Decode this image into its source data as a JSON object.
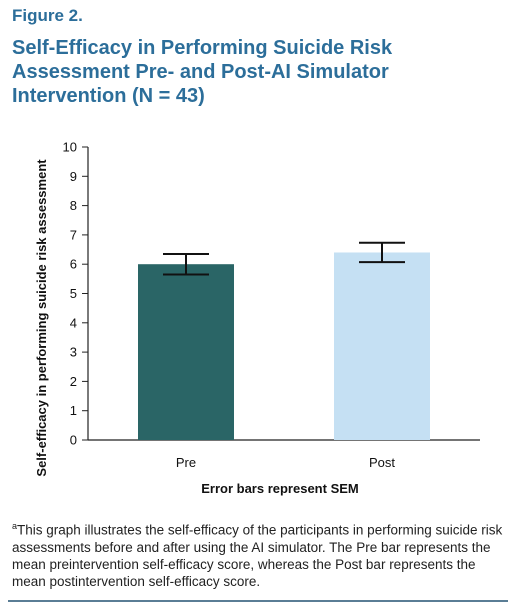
{
  "figure": {
    "label": "Figure 2.",
    "title": "Self-Efficacy in Performing Suicide Risk Assessment Pre- and Post-AI Simulator Intervention (N = 43)",
    "footnote_marker": "a",
    "footnote": "This graph illustrates the self-efficacy of the participants in performing suicide risk assessments before and after using the AI simulator. The Pre bar represents the mean preintervention self-efficacy score, whereas the Post bar represents the mean postintervention self-efficacy score."
  },
  "colors": {
    "title": "#2c6e9a",
    "pre_bar": "#2a6566",
    "post_bar": "#c5e0f3",
    "rule": "#5a7d95"
  },
  "chart_data": {
    "type": "bar",
    "categories": [
      "Pre",
      "Post"
    ],
    "values": [
      6.0,
      6.4
    ],
    "error_sem": [
      0.35,
      0.33
    ],
    "ylabel": "Self-efficacy in performing suicide risk assessment",
    "xlabel": "Error bars represent SEM",
    "ylim": [
      0,
      10
    ],
    "yticks": [
      0,
      1,
      2,
      3,
      4,
      5,
      6,
      7,
      8,
      9,
      10
    ],
    "grid": false,
    "legend": "none"
  }
}
